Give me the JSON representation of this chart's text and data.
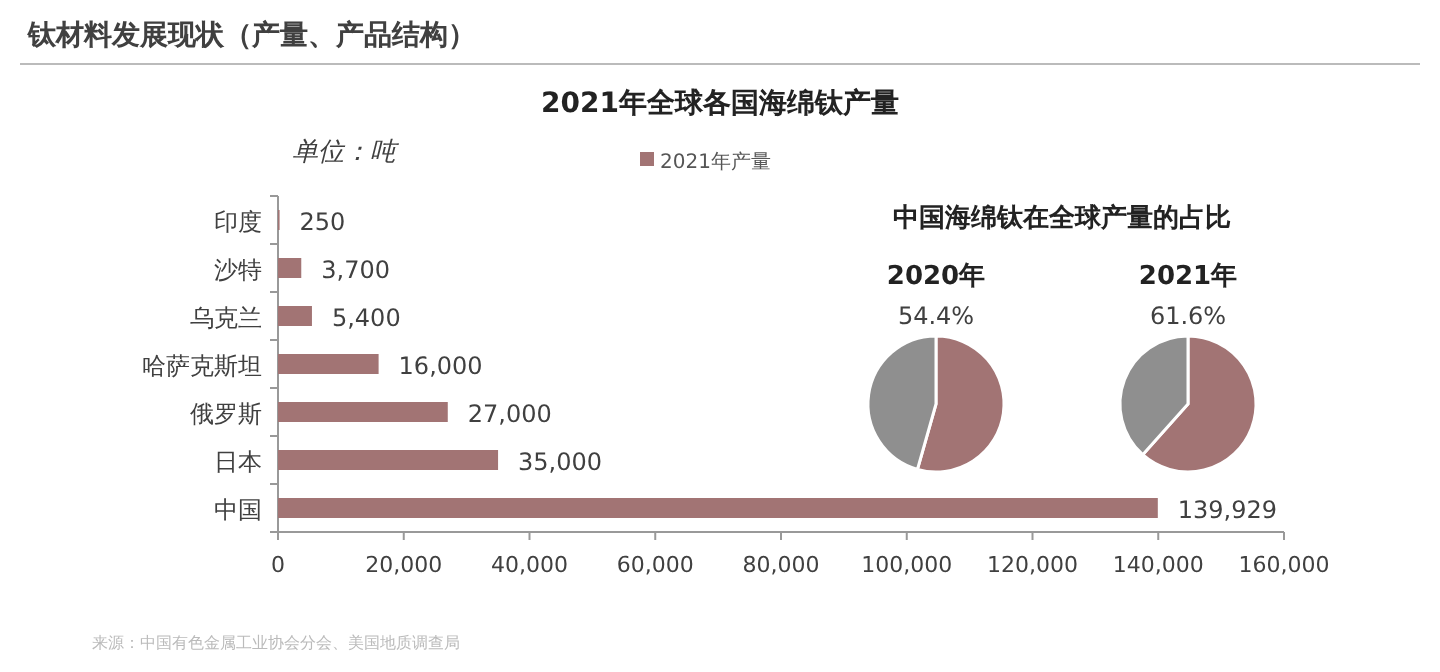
{
  "chart_data": [
    {
      "type": "bar",
      "orientation": "horizontal",
      "title": "2021年全球各国海绵钛产量",
      "annotations": [
        "钛材料发展现状（产量、产品结构）",
        "单位：吨",
        "来源：中国有色金属工业协会分会、美国地质调查局"
      ],
      "categories": [
        "印度",
        "沙特",
        "乌克兰",
        "哈萨克斯坦",
        "俄罗斯",
        "日本",
        "中国"
      ],
      "series": [
        {
          "name": "2021年产量",
          "color": "#a27474",
          "values": [
            250,
            3700,
            5400,
            16000,
            27000,
            35000,
            139929
          ],
          "value_labels": [
            "250",
            "3,700",
            "5,400",
            "16,000",
            "27,000",
            "35,000",
            "139,929"
          ]
        }
      ],
      "xlim": [
        0,
        160000
      ],
      "xticks": [
        0,
        {
          "value": 20000,
          "label": "20,000"
        },
        {
          "value": 40000,
          "label": "40,000"
        },
        {
          "value": 60000,
          "label": "60,000"
        },
        {
          "value": 80000,
          "label": "80,000"
        },
        {
          "value": 100000,
          "label": "100,000"
        },
        {
          "value": 120000,
          "label": "120,000"
        },
        {
          "value": 140000,
          "label": "140,000"
        },
        {
          "value": 160000,
          "label": "160,000"
        }
      ],
      "legend": "top"
    },
    {
      "type": "pie",
      "title": "中国海绵钛在全球产量的占比",
      "subtitle": "2020年",
      "categories": [
        null,
        null
      ],
      "values": [
        54.4,
        45.6
      ],
      "colors": [
        "#a27474",
        "#8f8f8f"
      ],
      "value_labels": [
        "54.4%",
        null
      ]
    },
    {
      "type": "pie",
      "subtitle": "2021年",
      "categories": [
        null,
        null
      ],
      "values": [
        61.6,
        38.4
      ],
      "colors": [
        "#a27474",
        "#8f8f8f"
      ],
      "value_labels": [
        "61.6%",
        null
      ]
    }
  ]
}
